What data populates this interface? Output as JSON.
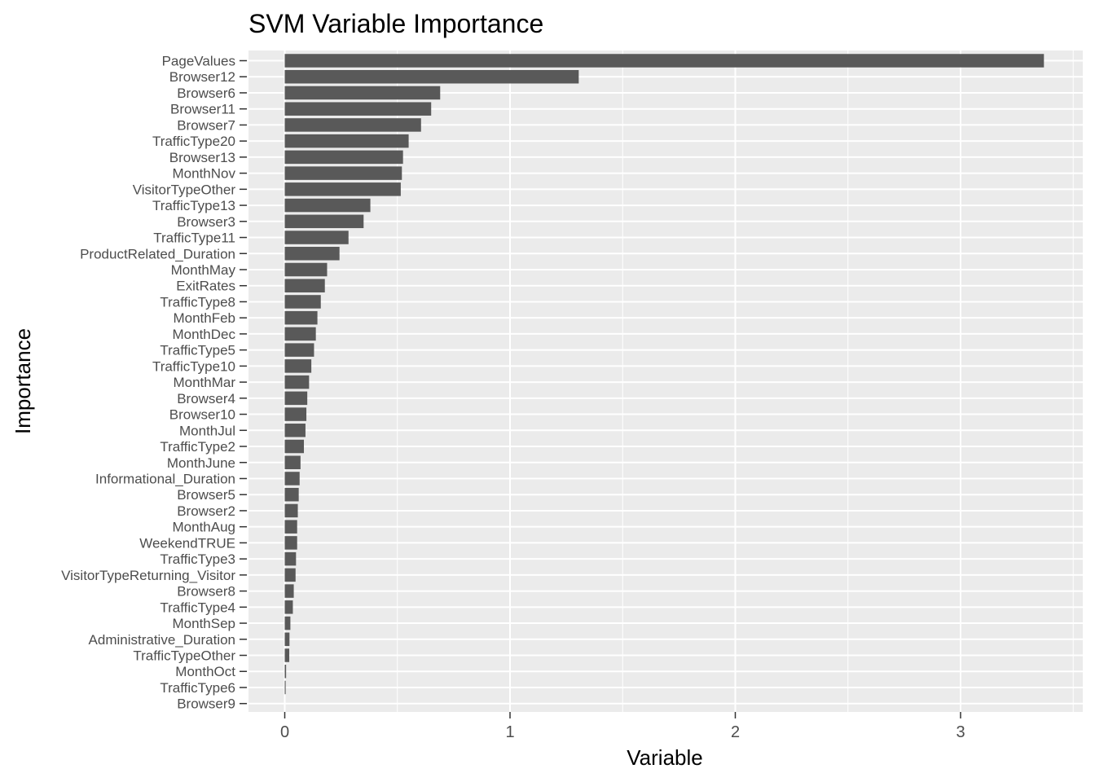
{
  "chart_data": {
    "type": "bar",
    "orientation": "horizontal",
    "title": "SVM Variable Importance",
    "xlabel": "Variable",
    "ylabel": "Importance",
    "xlim": [
      0,
      3.5
    ],
    "x_ticks": [
      0,
      1,
      2,
      3
    ],
    "x_tick_labels": [
      "0",
      "1",
      "2",
      "3"
    ],
    "grid": true,
    "panel_background": "#ebebeb",
    "grid_color": "#ffffff",
    "bar_color": "#595959",
    "categories": [
      "PageValues",
      "Browser12",
      "Browser6",
      "Browser11",
      "Browser7",
      "TrafficType20",
      "Browser13",
      "MonthNov",
      "VisitorTypeOther",
      "TrafficType13",
      "Browser3",
      "TrafficType11",
      "ProductRelated_Duration",
      "MonthMay",
      "ExitRates",
      "TrafficType8",
      "MonthFeb",
      "MonthDec",
      "TrafficType5",
      "TrafficType10",
      "MonthMar",
      "Browser4",
      "Browser10",
      "MonthJul",
      "TrafficType2",
      "MonthJune",
      "Informational_Duration",
      "Browser5",
      "Browser2",
      "MonthAug",
      "WeekendTRUE",
      "TrafficType3",
      "VisitorTypeReturning_Visitor",
      "Browser8",
      "TrafficType4",
      "MonthSep",
      "Administrative_Duration",
      "TrafficTypeOther",
      "MonthOct",
      "TrafficType6",
      "Browser9"
    ],
    "values": [
      3.37,
      1.305,
      0.69,
      0.65,
      0.605,
      0.55,
      0.525,
      0.52,
      0.515,
      0.38,
      0.35,
      0.283,
      0.243,
      0.188,
      0.178,
      0.16,
      0.145,
      0.138,
      0.13,
      0.118,
      0.108,
      0.1,
      0.096,
      0.092,
      0.085,
      0.07,
      0.066,
      0.062,
      0.058,
      0.055,
      0.055,
      0.05,
      0.048,
      0.04,
      0.036,
      0.025,
      0.021,
      0.02,
      0.006,
      0.004,
      0.0
    ]
  }
}
